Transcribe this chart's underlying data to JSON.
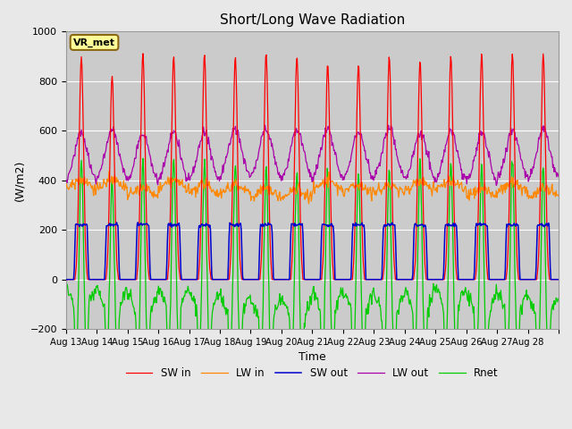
{
  "title": "Short/Long Wave Radiation",
  "xlabel": "Time",
  "ylabel": "(W/m2)",
  "ylim": [
    -200,
    1000
  ],
  "background_color": "#e8e8e8",
  "plot_bg_color": "#cbcbcb",
  "grid_color": "#ffffff",
  "annotation_text": "VR_met",
  "annotation_box_color": "#ffff99",
  "annotation_border_color": "#8b6914",
  "series": {
    "SW_in": {
      "color": "#ff0000",
      "label": "SW in"
    },
    "LW_in": {
      "color": "#ff8800",
      "label": "LW in"
    },
    "SW_out": {
      "color": "#0000cc",
      "label": "SW out"
    },
    "LW_out": {
      "color": "#aa00aa",
      "label": "LW out"
    },
    "Rnet": {
      "color": "#00cc00",
      "label": "Rnet"
    }
  },
  "xtick_labels": [
    "Aug 13",
    "Aug 14",
    "Aug 15",
    "Aug 16",
    "Aug 17",
    "Aug 18",
    "Aug 19",
    "Aug 20",
    "Aug 21",
    "Aug 22",
    "Aug 23",
    "Aug 24",
    "Aug 25",
    "Aug 26",
    "Aug 27",
    "Aug 28"
  ],
  "n_days": 16,
  "pts_per_day": 48
}
